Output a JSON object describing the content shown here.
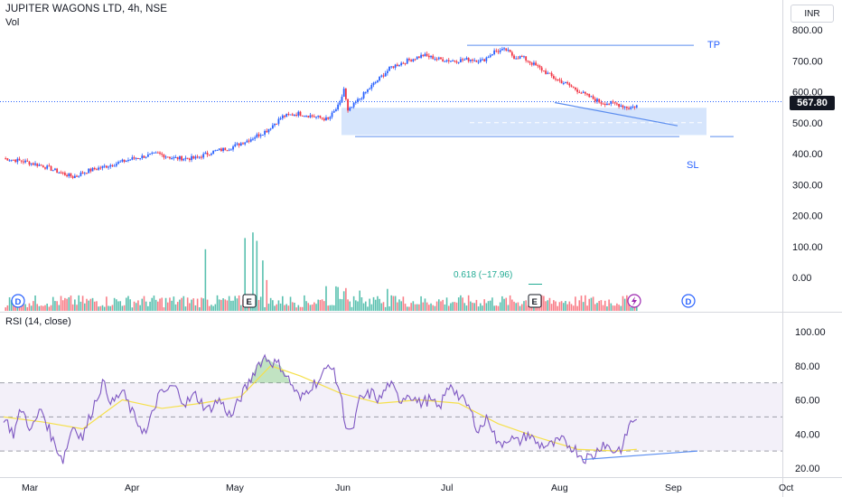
{
  "header": {
    "title": "JUPITER WAGONS LTD, 4h, NSE",
    "volume_label": "Vol",
    "currency": "INR"
  },
  "last_price": "567.80",
  "annotations": {
    "tp": "TP",
    "sl": "SL",
    "fib_text": "0.618 (−17.96)"
  },
  "colors": {
    "up": "#2962ff",
    "down": "#f23645",
    "vol_up": "#22ab94",
    "vol_down": "#f7525f",
    "rsi_line": "#7e57c2",
    "rsi_ma": "#f5e04b",
    "zone": "#cfe0fb",
    "trend": "#5b8def"
  },
  "chart_data": [
    {
      "type": "candlestick",
      "name": "price",
      "xlabel": "",
      "ylabel": "",
      "x_ticks": [
        "Mar",
        "Apr",
        "May",
        "Jun",
        "Jul",
        "Aug",
        "Sep",
        "Oct"
      ],
      "y_ticks": [
        "800.00",
        "700.00",
        "600.00",
        "500.00",
        "400.00",
        "300.00",
        "200.00",
        "100.00",
        "0.00"
      ],
      "ylim": [
        -30,
        850
      ],
      "last_value": 567.8,
      "path": [
        [
          0,
          385
        ],
        [
          10,
          375
        ],
        [
          20,
          360
        ],
        [
          28,
          340
        ],
        [
          35,
          325
        ],
        [
          43,
          345
        ],
        [
          55,
          365
        ],
        [
          66,
          385
        ],
        [
          78,
          400
        ],
        [
          86,
          385
        ],
        [
          97,
          385
        ],
        [
          105,
          405
        ],
        [
          115,
          420
        ],
        [
          124,
          445
        ],
        [
          133,
          475
        ],
        [
          141,
          520
        ],
        [
          149,
          530
        ],
        [
          157,
          520
        ],
        [
          164,
          510
        ],
        [
          170,
          560
        ],
        [
          172,
          610
        ],
        [
          174,
          535
        ],
        [
          178,
          565
        ],
        [
          187,
          625
        ],
        [
          196,
          680
        ],
        [
          204,
          700
        ],
        [
          212,
          718
        ],
        [
          220,
          705
        ],
        [
          228,
          700
        ],
        [
          236,
          705
        ],
        [
          242,
          700
        ],
        [
          248,
          730
        ],
        [
          254,
          735
        ],
        [
          258,
          712
        ],
        [
          262,
          712
        ],
        [
          270,
          680
        ],
        [
          278,
          645
        ],
        [
          286,
          620
        ],
        [
          294,
          590
        ],
        [
          302,
          565
        ],
        [
          310,
          560
        ],
        [
          316,
          548
        ],
        [
          320,
          555
        ]
      ],
      "tp_level": 750,
      "sl_level": 455,
      "zone": {
        "high": 548,
        "low": 460
      }
    },
    {
      "type": "bar",
      "name": "volume",
      "spikes": [
        [
          102,
          110,
          "up"
        ],
        [
          122,
          130,
          "up"
        ],
        [
          126,
          140,
          "up"
        ],
        [
          128,
          125,
          "up"
        ],
        [
          131,
          90,
          "up"
        ],
        [
          133,
          55,
          "up"
        ]
      ],
      "markers": [
        "D",
        "E",
        "E",
        "D"
      ]
    },
    {
      "type": "line",
      "name": "rsi",
      "label": "RSI (14, close)",
      "y_ticks": [
        "100.00",
        "80.00",
        "60.00",
        "40.00",
        "20.00"
      ],
      "ylim": [
        18,
        106
      ],
      "bands": [
        30,
        50,
        70
      ],
      "points": [
        [
          0,
          50
        ],
        [
          5,
          40
        ],
        [
          9,
          55
        ],
        [
          14,
          42
        ],
        [
          19,
          55
        ],
        [
          25,
          36
        ],
        [
          30,
          25
        ],
        [
          35,
          45
        ],
        [
          40,
          38
        ],
        [
          45,
          55
        ],
        [
          50,
          70
        ],
        [
          55,
          58
        ],
        [
          60,
          65
        ],
        [
          66,
          50
        ],
        [
          72,
          40
        ],
        [
          78,
          62
        ],
        [
          86,
          68
        ],
        [
          92,
          58
        ],
        [
          97,
          63
        ],
        [
          103,
          54
        ],
        [
          109,
          60
        ],
        [
          115,
          50
        ],
        [
          120,
          62
        ],
        [
          124,
          70
        ],
        [
          128,
          80
        ],
        [
          132,
          85
        ],
        [
          136,
          82
        ],
        [
          140,
          80
        ],
        [
          145,
          70
        ],
        [
          150,
          60
        ],
        [
          155,
          68
        ],
        [
          160,
          72
        ],
        [
          165,
          82
        ],
        [
          170,
          65
        ],
        [
          173,
          45
        ],
        [
          176,
          40
        ],
        [
          180,
          60
        ],
        [
          186,
          64
        ],
        [
          190,
          60
        ],
        [
          195,
          70
        ],
        [
          200,
          60
        ],
        [
          205,
          64
        ],
        [
          210,
          58
        ],
        [
          215,
          60
        ],
        [
          220,
          55
        ],
        [
          226,
          70
        ],
        [
          230,
          62
        ],
        [
          235,
          56
        ],
        [
          240,
          42
        ],
        [
          245,
          50
        ],
        [
          250,
          33
        ],
        [
          255,
          38
        ],
        [
          260,
          35
        ],
        [
          265,
          40
        ],
        [
          270,
          34
        ],
        [
          276,
          33
        ],
        [
          282,
          36
        ],
        [
          288,
          32
        ],
        [
          293,
          26
        ],
        [
          298,
          27
        ],
        [
          303,
          35
        ],
        [
          308,
          30
        ],
        [
          313,
          32
        ],
        [
          316,
          45
        ],
        [
          320,
          50
        ]
      ],
      "ma": [
        [
          0,
          50
        ],
        [
          20,
          47
        ],
        [
          40,
          43
        ],
        [
          60,
          60
        ],
        [
          80,
          55
        ],
        [
          100,
          58
        ],
        [
          120,
          62
        ],
        [
          135,
          80
        ],
        [
          150,
          74
        ],
        [
          170,
          64
        ],
        [
          190,
          58
        ],
        [
          210,
          60
        ],
        [
          230,
          58
        ],
        [
          250,
          46
        ],
        [
          270,
          38
        ],
        [
          290,
          31
        ],
        [
          310,
          30
        ],
        [
          320,
          31
        ]
      ]
    }
  ]
}
